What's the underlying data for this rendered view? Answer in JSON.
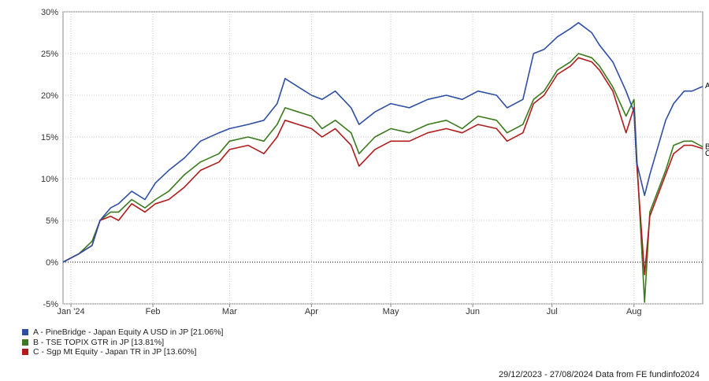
{
  "chart_data": {
    "type": "line",
    "ylim": [
      -5,
      30
    ],
    "y_ticks": [
      -5,
      0,
      5,
      10,
      15,
      20,
      25,
      30
    ],
    "y_tick_labels": [
      "-5%",
      "0%",
      "5%",
      "10%",
      "15%",
      "20%",
      "25%",
      "30%"
    ],
    "x_range": [
      "2023-12-29",
      "2024-08-27"
    ],
    "x_ticks": [
      {
        "date": "2024-01-01",
        "label": "Jan '24"
      },
      {
        "date": "2024-02-01",
        "label": "Feb"
      },
      {
        "date": "2024-03-01",
        "label": "Mar"
      },
      {
        "date": "2024-04-01",
        "label": "Apr"
      },
      {
        "date": "2024-05-01",
        "label": "May"
      },
      {
        "date": "2024-06-01",
        "label": "Jun"
      },
      {
        "date": "2024-07-01",
        "label": "Jul"
      },
      {
        "date": "2024-08-01",
        "label": "Aug"
      }
    ],
    "grid": true,
    "legend_position": "bottom-left",
    "series": [
      {
        "name": "A - PineBridge - Japan Equity A USD in JP [21.06%]",
        "end_label": "A",
        "color": "#2d4ea3",
        "points": [
          [
            "2023-12-29",
            0.0
          ],
          [
            "2024-01-04",
            1.0
          ],
          [
            "2024-01-09",
            2.0
          ],
          [
            "2024-01-12",
            5.0
          ],
          [
            "2024-01-16",
            6.5
          ],
          [
            "2024-01-19",
            7.0
          ],
          [
            "2024-01-24",
            8.5
          ],
          [
            "2024-01-29",
            7.5
          ],
          [
            "2024-02-02",
            9.5
          ],
          [
            "2024-02-07",
            11.0
          ],
          [
            "2024-02-13",
            12.5
          ],
          [
            "2024-02-19",
            14.5
          ],
          [
            "2024-02-26",
            15.5
          ],
          [
            "2024-03-01",
            16.0
          ],
          [
            "2024-03-08",
            16.5
          ],
          [
            "2024-03-14",
            17.0
          ],
          [
            "2024-03-19",
            19.0
          ],
          [
            "2024-03-22",
            22.0
          ],
          [
            "2024-03-27",
            21.0
          ],
          [
            "2024-04-01",
            20.0
          ],
          [
            "2024-04-05",
            19.5
          ],
          [
            "2024-04-10",
            20.5
          ],
          [
            "2024-04-16",
            18.5
          ],
          [
            "2024-04-19",
            16.5
          ],
          [
            "2024-04-25",
            18.0
          ],
          [
            "2024-05-01",
            19.0
          ],
          [
            "2024-05-08",
            18.5
          ],
          [
            "2024-05-15",
            19.5
          ],
          [
            "2024-05-22",
            20.0
          ],
          [
            "2024-05-28",
            19.5
          ],
          [
            "2024-06-03",
            20.5
          ],
          [
            "2024-06-10",
            20.0
          ],
          [
            "2024-06-14",
            18.5
          ],
          [
            "2024-06-20",
            19.5
          ],
          [
            "2024-06-24",
            25.0
          ],
          [
            "2024-06-28",
            25.5
          ],
          [
            "2024-07-03",
            27.0
          ],
          [
            "2024-07-08",
            28.0
          ],
          [
            "2024-07-11",
            28.7
          ],
          [
            "2024-07-16",
            27.5
          ],
          [
            "2024-07-19",
            26.0
          ],
          [
            "2024-07-24",
            24.0
          ],
          [
            "2024-07-29",
            20.5
          ],
          [
            "2024-08-01",
            18.0
          ],
          [
            "2024-08-02",
            12.0
          ],
          [
            "2024-08-05",
            8.0
          ],
          [
            "2024-08-07",
            10.5
          ],
          [
            "2024-08-13",
            17.0
          ],
          [
            "2024-08-16",
            19.0
          ],
          [
            "2024-08-20",
            20.5
          ],
          [
            "2024-08-23",
            20.5
          ],
          [
            "2024-08-27",
            21.06
          ]
        ]
      },
      {
        "name": "B - TSE TOPIX GTR in JP [13.81%]",
        "end_label": "B",
        "color": "#3b7a1e",
        "points": [
          [
            "2023-12-29",
            0.0
          ],
          [
            "2024-01-04",
            1.0
          ],
          [
            "2024-01-09",
            2.5
          ],
          [
            "2024-01-12",
            5.0
          ],
          [
            "2024-01-16",
            6.0
          ],
          [
            "2024-01-19",
            6.0
          ],
          [
            "2024-01-24",
            7.5
          ],
          [
            "2024-01-29",
            6.5
          ],
          [
            "2024-02-02",
            7.5
          ],
          [
            "2024-02-07",
            8.5
          ],
          [
            "2024-02-13",
            10.5
          ],
          [
            "2024-02-19",
            12.0
          ],
          [
            "2024-02-26",
            13.0
          ],
          [
            "2024-03-01",
            14.5
          ],
          [
            "2024-03-08",
            15.0
          ],
          [
            "2024-03-14",
            14.5
          ],
          [
            "2024-03-19",
            16.5
          ],
          [
            "2024-03-22",
            18.5
          ],
          [
            "2024-03-27",
            18.0
          ],
          [
            "2024-04-01",
            17.5
          ],
          [
            "2024-04-05",
            16.0
          ],
          [
            "2024-04-10",
            17.0
          ],
          [
            "2024-04-16",
            15.5
          ],
          [
            "2024-04-19",
            13.0
          ],
          [
            "2024-04-25",
            15.0
          ],
          [
            "2024-05-01",
            16.0
          ],
          [
            "2024-05-08",
            15.5
          ],
          [
            "2024-05-15",
            16.5
          ],
          [
            "2024-05-22",
            17.0
          ],
          [
            "2024-05-28",
            16.0
          ],
          [
            "2024-06-03",
            17.5
          ],
          [
            "2024-06-10",
            17.0
          ],
          [
            "2024-06-14",
            15.5
          ],
          [
            "2024-06-20",
            16.5
          ],
          [
            "2024-06-24",
            19.5
          ],
          [
            "2024-06-28",
            20.5
          ],
          [
            "2024-07-03",
            23.0
          ],
          [
            "2024-07-08",
            24.0
          ],
          [
            "2024-07-11",
            25.0
          ],
          [
            "2024-07-16",
            24.5
          ],
          [
            "2024-07-19",
            23.5
          ],
          [
            "2024-07-24",
            21.0
          ],
          [
            "2024-07-29",
            17.5
          ],
          [
            "2024-08-01",
            19.5
          ],
          [
            "2024-08-02",
            13.0
          ],
          [
            "2024-08-05",
            -4.8
          ],
          [
            "2024-08-07",
            6.0
          ],
          [
            "2024-08-13",
            11.0
          ],
          [
            "2024-08-16",
            14.0
          ],
          [
            "2024-08-20",
            14.5
          ],
          [
            "2024-08-23",
            14.5
          ],
          [
            "2024-08-27",
            13.81
          ]
        ]
      },
      {
        "name": "C - Sgp Mt Equity - Japan TR in JP [13.60%]",
        "end_label": "C",
        "color": "#b01c1c",
        "points": [
          [
            "2023-12-29",
            0.0
          ],
          [
            "2024-01-04",
            1.0
          ],
          [
            "2024-01-09",
            2.0
          ],
          [
            "2024-01-12",
            5.0
          ],
          [
            "2024-01-16",
            5.5
          ],
          [
            "2024-01-19",
            5.0
          ],
          [
            "2024-01-24",
            7.0
          ],
          [
            "2024-01-29",
            6.0
          ],
          [
            "2024-02-02",
            7.0
          ],
          [
            "2024-02-07",
            7.5
          ],
          [
            "2024-02-13",
            9.0
          ],
          [
            "2024-02-19",
            11.0
          ],
          [
            "2024-02-26",
            12.0
          ],
          [
            "2024-03-01",
            13.5
          ],
          [
            "2024-03-08",
            14.0
          ],
          [
            "2024-03-14",
            13.0
          ],
          [
            "2024-03-19",
            15.0
          ],
          [
            "2024-03-22",
            17.0
          ],
          [
            "2024-03-27",
            16.5
          ],
          [
            "2024-04-01",
            16.0
          ],
          [
            "2024-04-05",
            15.0
          ],
          [
            "2024-04-10",
            16.0
          ],
          [
            "2024-04-16",
            14.0
          ],
          [
            "2024-04-19",
            11.5
          ],
          [
            "2024-04-25",
            13.5
          ],
          [
            "2024-05-01",
            14.5
          ],
          [
            "2024-05-08",
            14.5
          ],
          [
            "2024-05-15",
            15.5
          ],
          [
            "2024-05-22",
            16.0
          ],
          [
            "2024-05-28",
            15.5
          ],
          [
            "2024-06-03",
            16.5
          ],
          [
            "2024-06-10",
            16.0
          ],
          [
            "2024-06-14",
            14.5
          ],
          [
            "2024-06-20",
            15.5
          ],
          [
            "2024-06-24",
            19.0
          ],
          [
            "2024-06-28",
            20.0
          ],
          [
            "2024-07-03",
            22.5
          ],
          [
            "2024-07-08",
            23.5
          ],
          [
            "2024-07-11",
            24.5
          ],
          [
            "2024-07-16",
            24.0
          ],
          [
            "2024-07-19",
            23.0
          ],
          [
            "2024-07-24",
            20.5
          ],
          [
            "2024-07-29",
            15.5
          ],
          [
            "2024-08-01",
            18.5
          ],
          [
            "2024-08-02",
            12.0
          ],
          [
            "2024-08-05",
            -1.5
          ],
          [
            "2024-08-07",
            5.5
          ],
          [
            "2024-08-13",
            10.5
          ],
          [
            "2024-08-16",
            13.0
          ],
          [
            "2024-08-20",
            14.0
          ],
          [
            "2024-08-23",
            14.0
          ],
          [
            "2024-08-27",
            13.6
          ]
        ]
      }
    ]
  },
  "footer": {
    "text": "29/12/2023 - 27/08/2024 Data from FE fundinfo2024"
  }
}
